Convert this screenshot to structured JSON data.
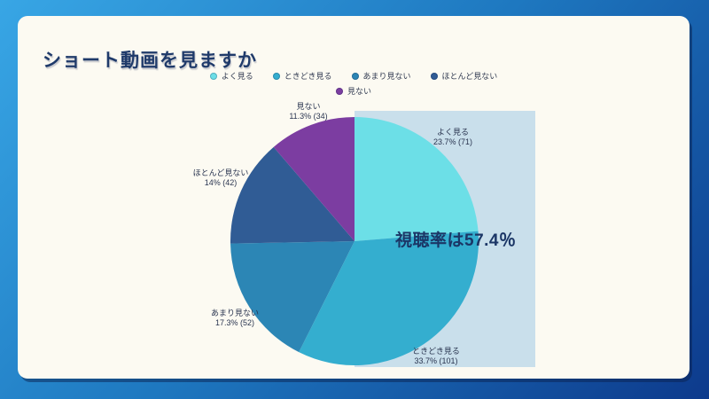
{
  "slide": {
    "title": "ショート動画を見ますか",
    "center_annotation": "視聴率は57.4％"
  },
  "chart_data": {
    "type": "pie",
    "title": "ショート動画を見ますか",
    "annotation": "視聴率は57.4％",
    "legend_position": "top",
    "legend_rows": [
      [
        "よく見る",
        "ときどき見る",
        "あまり見ない",
        "ほとんど見ない"
      ],
      [
        "見ない"
      ]
    ],
    "highlight_color": "#C9DFEB",
    "start_angle_deg": 0,
    "direction": "clockwise",
    "segments": [
      {
        "label": "よく見る",
        "percent": 23.7,
        "count": 71,
        "display": "23.7% (71)",
        "color": "#6CDFE7"
      },
      {
        "label": "ときどき見る",
        "percent": 33.7,
        "count": 101,
        "display": "33.7% (101)",
        "color": "#34AECF"
      },
      {
        "label": "あまり見ない",
        "percent": 17.3,
        "count": 52,
        "display": "17.3% (52)",
        "color": "#2C86B5"
      },
      {
        "label": "ほとんど見ない",
        "percent": 14,
        "count": 42,
        "display": "14% (42)",
        "color": "#305C95"
      },
      {
        "label": "見ない",
        "percent": 11.3,
        "count": 34,
        "display": "11.3% (34)",
        "color": "#7C3DA1"
      }
    ]
  },
  "colors": {
    "background_gradient": [
      "#38A6E5",
      "#1E78C0",
      "#0D3A8C"
    ],
    "card": "#FCFAF2",
    "title_text": "#1F3A6A",
    "annotation_text": "#1B3666",
    "label_text": "#2A3550"
  }
}
